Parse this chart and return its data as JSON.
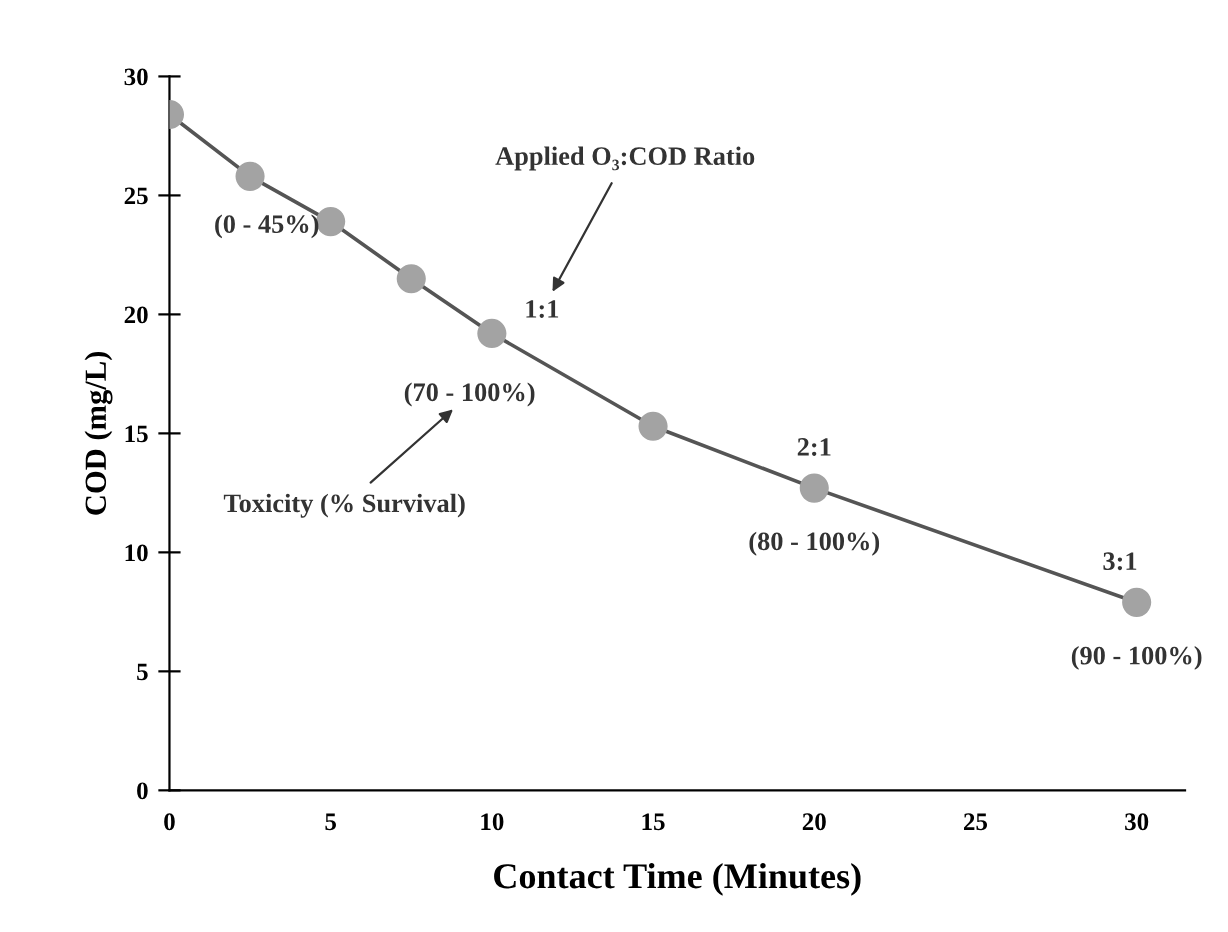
{
  "chart_data": {
    "type": "line",
    "xlabel": "Contact Time (Minutes)",
    "ylabel": "COD (mg/L)",
    "x": [
      0,
      2.5,
      5,
      7.5,
      10,
      15,
      20,
      30
    ],
    "series": [
      {
        "color": "#a3a3a3",
        "values": [
          28.4,
          25.8,
          23.9,
          21.5,
          19.2,
          15.3,
          12.7,
          7.9
        ]
      }
    ],
    "marker": "circle",
    "line_style": "solid",
    "grid": false,
    "legend": false,
    "xlim": [
      0,
      31.5
    ],
    "xticks": [
      0,
      5,
      10,
      15,
      20,
      25,
      30
    ],
    "ylim": [
      0,
      30
    ],
    "yticks": [
      0,
      5,
      10,
      15,
      20,
      25,
      30
    ],
    "annotations": [
      {
        "text": "(0 - 45%)",
        "x": 2.5,
        "y": 25.8
      },
      "Applied O₃:COD Ratio",
      {
        "text": "1:1",
        "x": 10,
        "y": 19.2
      },
      {
        "text": "(70 - 100%)",
        "x": 10,
        "y": 19.2
      },
      "Toxicity (% Survival)",
      {
        "text": "2:1",
        "x": 20,
        "y": 12.7
      },
      {
        "text": "(80 - 100%)",
        "x": 20,
        "y": 12.7
      },
      {
        "text": "3:1",
        "x": 30,
        "y": 7.9
      },
      {
        "text": "(90 - 100%)",
        "x": 30,
        "y": 7.9
      }
    ]
  }
}
